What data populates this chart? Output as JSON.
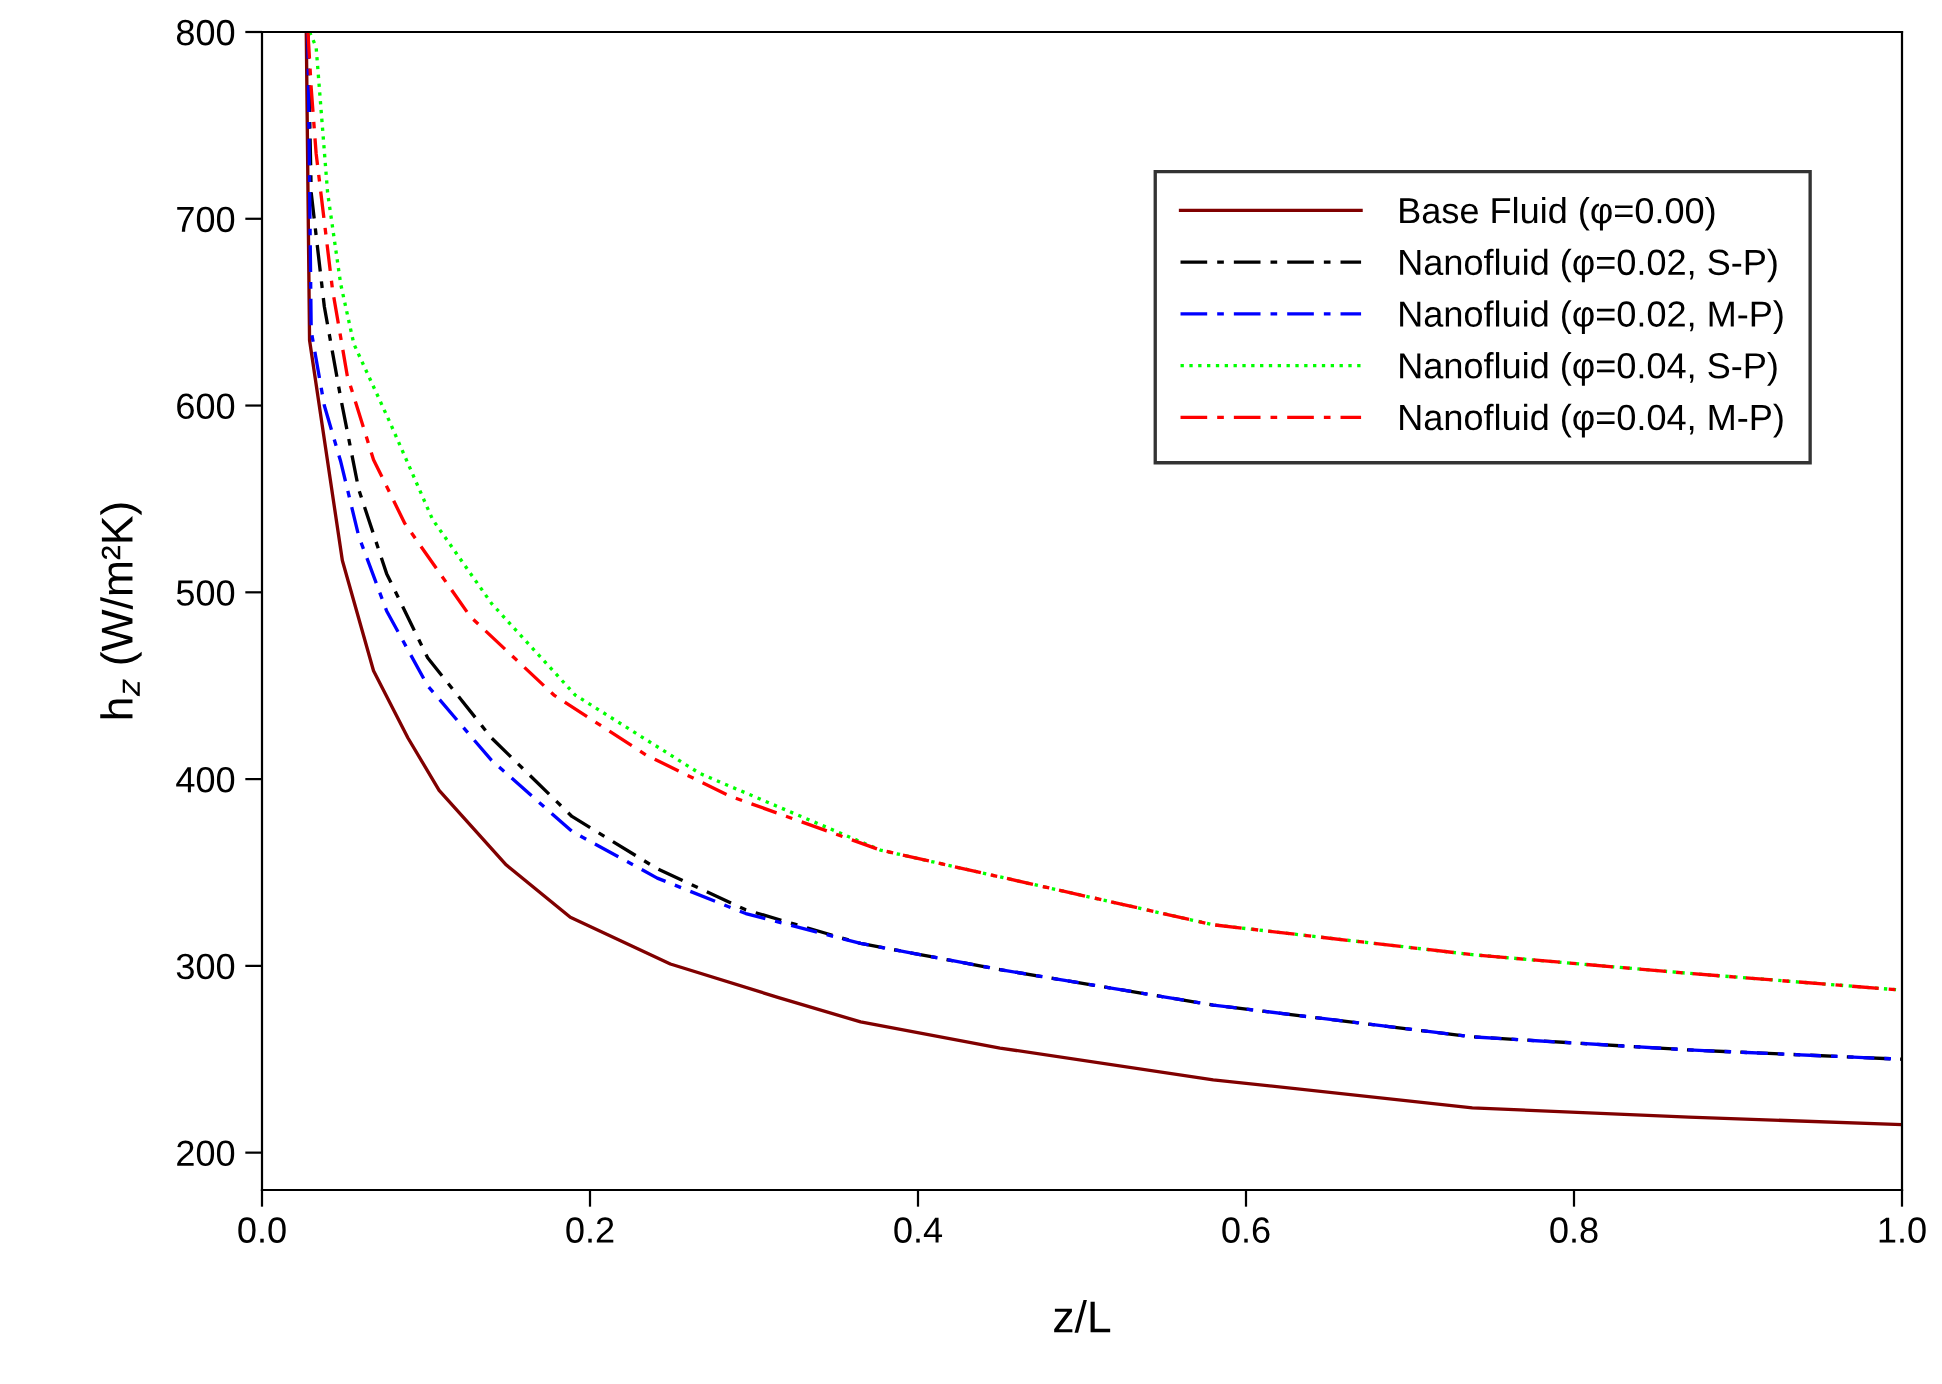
{
  "chart_data": {
    "type": "line",
    "xlabel": "z/L",
    "ylabel": "h$_{z}$ (W/m²K)",
    "xlim": [
      0,
      1
    ],
    "ylim": [
      180,
      800
    ],
    "xticks": [
      {
        "value": 0,
        "label": "0.0"
      },
      0.2,
      0.4,
      0.6,
      0.8,
      {
        "value": 1,
        "label": "1.0"
      }
    ],
    "yticks": [
      200,
      300,
      400,
      500,
      600,
      700,
      800
    ],
    "grid": false,
    "legend": "top right",
    "marker": "none",
    "series": [
      {
        "name": "Base Fluid (φ=0.00)",
        "color": "#800000",
        "line_style": "solid",
        "x": [
          0.027,
          0.029,
          0.049,
          0.068,
          0.089,
          0.108,
          0.149,
          0.188,
          0.249,
          0.315,
          0.365,
          0.45,
          0.58,
          0.738,
          0.87,
          1.0
        ],
        "values": [
          800,
          635,
          517,
          458,
          422,
          394,
          354,
          326,
          301,
          283,
          270,
          256,
          239,
          224,
          219,
          215
        ]
      },
      {
        "name": "Nanofluid (φ=0.02, S-P)",
        "color": "#000000",
        "line_style": "dashed",
        "x": [
          0.028,
          0.03,
          0.038,
          0.048,
          0.059,
          0.076,
          0.101,
          0.14,
          0.189,
          0.241,
          0.295,
          0.365,
          0.45,
          0.58,
          0.738,
          0.87,
          1.0
        ],
        "values": [
          800,
          714,
          653,
          604,
          555,
          510,
          465,
          422,
          380,
          352,
          330,
          312,
          298,
          279,
          262,
          255,
          250
        ]
      },
      {
        "name": "Nanofluid (φ=0.02, M-P)",
        "color": "#0000ff",
        "line_style": "dashed",
        "x": [
          0.028,
          0.03,
          0.038,
          0.048,
          0.059,
          0.076,
          0.101,
          0.14,
          0.189,
          0.241,
          0.295,
          0.365,
          0.45,
          0.58,
          0.738,
          0.87,
          1.0
        ],
        "values": [
          800,
          640,
          600,
          570,
          530,
          490,
          450,
          410,
          372,
          347,
          328,
          312,
          298,
          279,
          262,
          255,
          250
        ]
      },
      {
        "name": "Nanofluid (φ=0.04, S-P)",
        "color": "#00ff00",
        "line_style": "dotted",
        "x": [
          0.029,
          0.033,
          0.04,
          0.048,
          0.056,
          0.078,
          0.104,
          0.14,
          0.191,
          0.267,
          0.377,
          0.58,
          0.738,
          0.87,
          1.0
        ],
        "values": [
          800,
          792,
          714,
          665,
          633,
          591,
          539,
          494,
          445,
          403,
          362,
          322,
          306,
          296,
          287
        ]
      },
      {
        "name": "Nanofluid (φ=0.04, M-P)",
        "color": "#ff0000",
        "line_style": "dashed",
        "x": [
          0.028,
          0.03,
          0.033,
          0.043,
          0.052,
          0.068,
          0.087,
          0.127,
          0.178,
          0.234,
          0.285,
          0.377,
          0.58,
          0.738,
          0.87,
          1.0
        ],
        "values": [
          800,
          770,
          735,
          662,
          616,
          571,
          537,
          487,
          445,
          413,
          391,
          362,
          322,
          306,
          296,
          287
        ]
      }
    ]
  }
}
